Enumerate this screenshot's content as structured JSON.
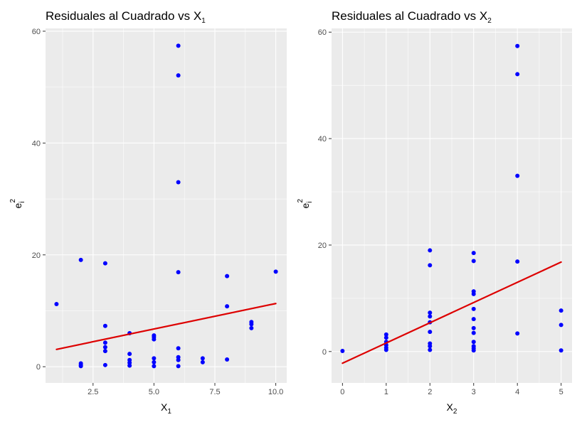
{
  "chart_data": [
    {
      "type": "scatter",
      "title": "Residuales al Cuadrado vs",
      "title_var": "X",
      "title_sub": "1",
      "xlabel": "X",
      "xlabel_sub": "1",
      "ylabel": "e",
      "ylabel_sup": "2",
      "ylabel_sub": "i",
      "xlim": [
        0.55,
        10.45
      ],
      "ylim": [
        -2.9,
        60.5
      ],
      "x_ticks": [
        2.5,
        5.0,
        7.5,
        10.0
      ],
      "x_tick_labels": [
        "2.5",
        "5.0",
        "7.5",
        "10.0"
      ],
      "y_ticks": [
        0,
        20,
        40,
        60
      ],
      "y_tick_labels": [
        "0",
        "20",
        "40",
        "60"
      ],
      "grid": true,
      "points_color": "#0000ff",
      "line_color": "#dd0000",
      "points": [
        {
          "x": 1,
          "y": 11.2
        },
        {
          "x": 2,
          "y": 19.1
        },
        {
          "x": 2,
          "y": 0.6
        },
        {
          "x": 2,
          "y": 0.3
        },
        {
          "x": 2,
          "y": 0.1
        },
        {
          "x": 3,
          "y": 18.5
        },
        {
          "x": 3,
          "y": 7.3
        },
        {
          "x": 3,
          "y": 4.3
        },
        {
          "x": 3,
          "y": 3.5
        },
        {
          "x": 3,
          "y": 2.8
        },
        {
          "x": 3,
          "y": 0.3
        },
        {
          "x": 4,
          "y": 6.0
        },
        {
          "x": 4,
          "y": 2.3
        },
        {
          "x": 4,
          "y": 1.2
        },
        {
          "x": 4,
          "y": 0.7
        },
        {
          "x": 4,
          "y": 0.2
        },
        {
          "x": 5,
          "y": 5.6
        },
        {
          "x": 5,
          "y": 5.3
        },
        {
          "x": 5,
          "y": 4.9
        },
        {
          "x": 5,
          "y": 1.5
        },
        {
          "x": 5,
          "y": 0.8
        },
        {
          "x": 5,
          "y": 0.1
        },
        {
          "x": 6,
          "y": 57.4
        },
        {
          "x": 6,
          "y": 52.1
        },
        {
          "x": 6,
          "y": 33.0
        },
        {
          "x": 6,
          "y": 16.9
        },
        {
          "x": 6,
          "y": 3.3
        },
        {
          "x": 6,
          "y": 1.7
        },
        {
          "x": 6,
          "y": 1.2
        },
        {
          "x": 6,
          "y": 0.1
        },
        {
          "x": 7,
          "y": 1.5
        },
        {
          "x": 7,
          "y": 0.8
        },
        {
          "x": 8,
          "y": 16.2
        },
        {
          "x": 8,
          "y": 10.8
        },
        {
          "x": 8,
          "y": 1.3
        },
        {
          "x": 9,
          "y": 8.0
        },
        {
          "x": 9,
          "y": 7.6
        },
        {
          "x": 9,
          "y": 6.9
        },
        {
          "x": 10,
          "y": 17.0
        }
      ],
      "fit_line": {
        "x": [
          1,
          10
        ],
        "y": [
          3.1,
          11.3
        ]
      }
    },
    {
      "type": "scatter",
      "title": "Residuales al Cuadrado vs",
      "title_var": "X",
      "title_sub": "2",
      "xlabel": "X",
      "xlabel_sub": "2",
      "ylabel": "e",
      "ylabel_sup": "2",
      "ylabel_sub": "i",
      "xlim": [
        -0.25,
        5.25
      ],
      "ylim": [
        -5.9,
        60.7
      ],
      "x_ticks": [
        0,
        1,
        2,
        3,
        4,
        5
      ],
      "x_tick_labels": [
        "0",
        "1",
        "2",
        "3",
        "4",
        "5"
      ],
      "y_ticks": [
        0,
        20,
        40,
        60
      ],
      "y_tick_labels": [
        "0",
        "20",
        "40",
        "60"
      ],
      "grid": true,
      "points_color": "#0000ff",
      "line_color": "#dd0000",
      "points": [
        {
          "x": 0,
          "y": 0.1
        },
        {
          "x": 1,
          "y": 3.2
        },
        {
          "x": 1,
          "y": 2.6
        },
        {
          "x": 1,
          "y": 1.8
        },
        {
          "x": 1,
          "y": 1.2
        },
        {
          "x": 1,
          "y": 0.7
        },
        {
          "x": 1,
          "y": 0.3
        },
        {
          "x": 2,
          "y": 19.0
        },
        {
          "x": 2,
          "y": 16.2
        },
        {
          "x": 2,
          "y": 7.3
        },
        {
          "x": 2,
          "y": 6.6
        },
        {
          "x": 2,
          "y": 5.5
        },
        {
          "x": 2,
          "y": 3.7
        },
        {
          "x": 2,
          "y": 1.5
        },
        {
          "x": 2,
          "y": 1.0
        },
        {
          "x": 2,
          "y": 0.3
        },
        {
          "x": 3,
          "y": 18.5
        },
        {
          "x": 3,
          "y": 17.0
        },
        {
          "x": 3,
          "y": 11.3
        },
        {
          "x": 3,
          "y": 10.8
        },
        {
          "x": 3,
          "y": 8.0
        },
        {
          "x": 3,
          "y": 6.1
        },
        {
          "x": 3,
          "y": 4.4
        },
        {
          "x": 3,
          "y": 3.5
        },
        {
          "x": 3,
          "y": 1.8
        },
        {
          "x": 3,
          "y": 1.0
        },
        {
          "x": 3,
          "y": 0.6
        },
        {
          "x": 3,
          "y": 0.2
        },
        {
          "x": 4,
          "y": 57.4
        },
        {
          "x": 4,
          "y": 52.1
        },
        {
          "x": 4,
          "y": 33.0
        },
        {
          "x": 4,
          "y": 16.9
        },
        {
          "x": 4,
          "y": 3.4
        },
        {
          "x": 5,
          "y": 7.7
        },
        {
          "x": 5,
          "y": 5.0
        },
        {
          "x": 5,
          "y": 0.2
        }
      ],
      "fit_line": {
        "x": [
          0,
          5
        ],
        "y": [
          -2.2,
          16.8
        ]
      }
    }
  ]
}
